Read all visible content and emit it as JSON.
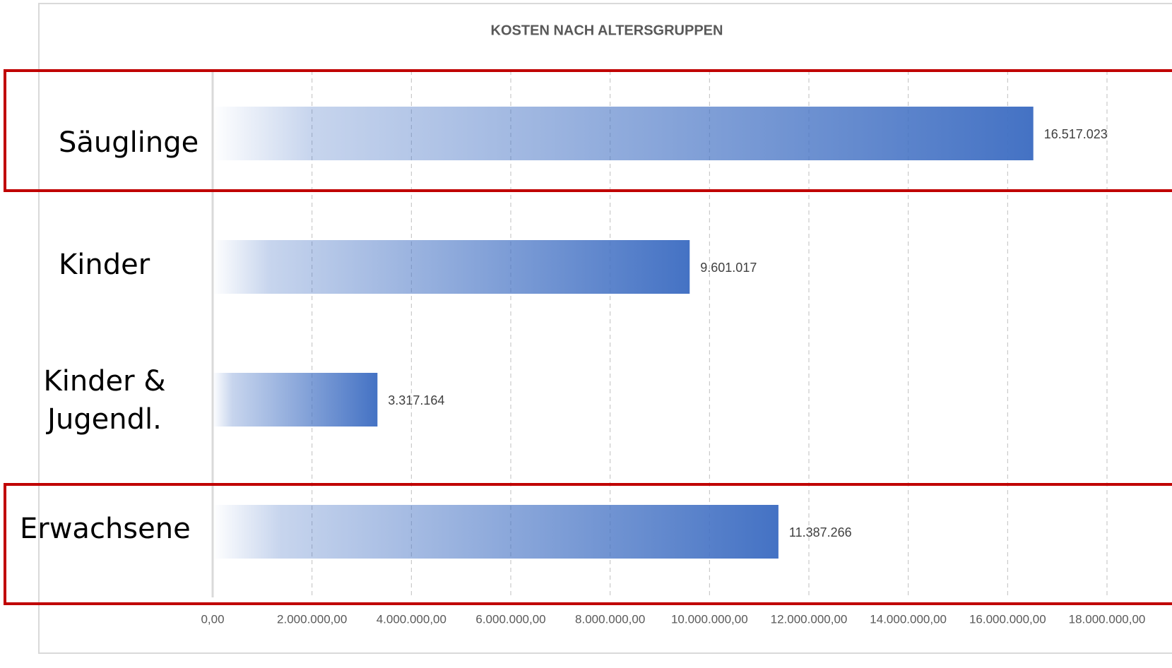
{
  "chart_data": {
    "type": "bar",
    "orientation": "horizontal",
    "title": "KOSTEN NACH ALTERSGRUPPEN",
    "categories": [
      "Säuglinge",
      "Kinder",
      "Kinder & Jugendl.",
      "Erwachsene"
    ],
    "values": [
      16517023,
      9601017,
      3317164,
      11387266
    ],
    "value_labels": [
      "16.517.023",
      "9.601.017",
      "3.317.164",
      "11.387.266"
    ],
    "color": "#4472c4",
    "grid": true,
    "xlim": [
      0,
      18000000
    ],
    "xticks": [
      {
        "value": 0,
        "label": "0,00"
      },
      {
        "value": 2000000,
        "label": "2.000.000,00"
      },
      {
        "value": 4000000,
        "label": "4.000.000,00"
      },
      {
        "value": 6000000,
        "label": "6.000.000,00"
      },
      {
        "value": 8000000,
        "label": "8.000.000,00"
      },
      {
        "value": 10000000,
        "label": "10.000.000,00"
      },
      {
        "value": 12000000,
        "label": "12.000.000,00"
      },
      {
        "value": 14000000,
        "label": "14.000.000,00"
      },
      {
        "value": 16000000,
        "label": "16.000.000,00"
      },
      {
        "value": 18000000,
        "label": "18.000.000,00"
      }
    ]
  }
}
